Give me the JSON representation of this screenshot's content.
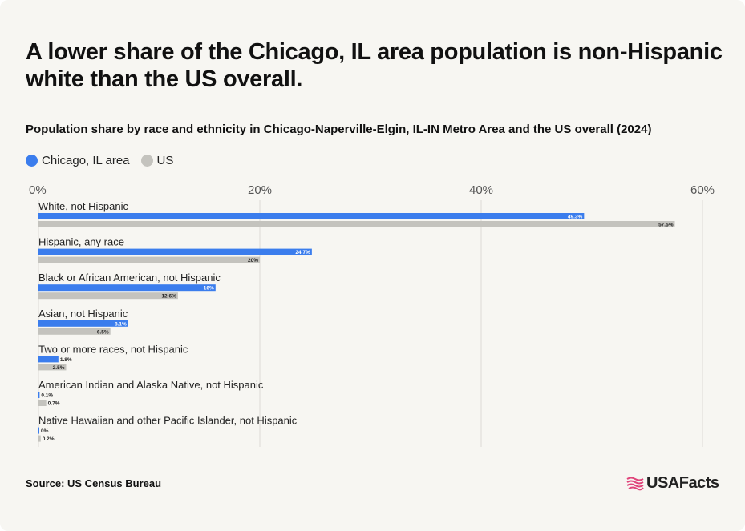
{
  "title": "A lower share of the Chicago, IL area population is non-Hispanic white than the US overall.",
  "subtitle": "Population share by race and ethnicity in Chicago-Naperville-Elgin, IL-IN Metro Area and the US overall (2024)",
  "source": "Source: US Census Bureau",
  "brand": "USAFacts",
  "colors": {
    "chicago": "#3b7ded",
    "us": "#c4c3be",
    "grid": "#dcdbd6",
    "background": "#f7f6f2"
  },
  "chart_data": {
    "type": "bar",
    "orientation": "horizontal",
    "xlim": [
      0,
      60
    ],
    "ticks": [
      "0%",
      "20%",
      "40%",
      "60%"
    ],
    "tick_values": [
      0,
      20,
      40,
      60
    ],
    "legend_position": "top-left",
    "grid": true,
    "categories": [
      "White, not Hispanic",
      "Hispanic, any race",
      "Black or African American, not Hispanic",
      "Asian, not Hispanic",
      "Two or more races, not Hispanic",
      "American Indian and Alaska Native, not Hispanic",
      "Native Hawaiian and other Pacific Islander, not Hispanic"
    ],
    "series": [
      {
        "name": "Chicago, IL area",
        "values": [
          49.3,
          24.7,
          16,
          8.1,
          1.8,
          0.1,
          0
        ],
        "labels": [
          "49.3%",
          "24.7%",
          "16%",
          "8.1%",
          "1.8%",
          "0.1%",
          "0%"
        ]
      },
      {
        "name": "US",
        "values": [
          57.5,
          20,
          12.6,
          6.5,
          2.5,
          0.7,
          0.2
        ],
        "labels": [
          "57.5%",
          "20%",
          "12.6%",
          "6.5%",
          "2.5%",
          "0.7%",
          "0.2%"
        ]
      }
    ]
  }
}
